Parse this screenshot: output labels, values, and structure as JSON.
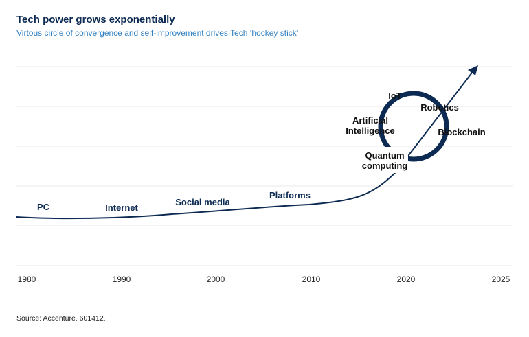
{
  "header": {
    "title": "Tech power grows exponentially",
    "subtitle": "Virtous circle of convergence and self-improvement drives Tech ‘hockey stick’"
  },
  "footer": {
    "source": "Source: Accenture. 601412."
  },
  "colors": {
    "line": "#0d2b52",
    "grid": "#e6e6e6",
    "subtitle": "#2f7fc1"
  },
  "chart_data": {
    "type": "line",
    "title": "Tech power grows exponentially",
    "subtitle": "Virtous circle of convergence and self-improvement drives Tech ‘hockey stick’",
    "xlabel": "",
    "ylabel": "",
    "x_ticks": [
      "1980",
      "1990",
      "2000",
      "2010",
      "2020",
      "2025"
    ],
    "grid": true,
    "era_labels": [
      "PC",
      "Internet",
      "Social media",
      "Platforms"
    ],
    "convergence_labels": [
      "IoT",
      "Robotics",
      "Artificial Intelligence",
      "Blockchain",
      "Quantum computing"
    ],
    "curve": "exponential growth ending in an arrow after 2020"
  }
}
